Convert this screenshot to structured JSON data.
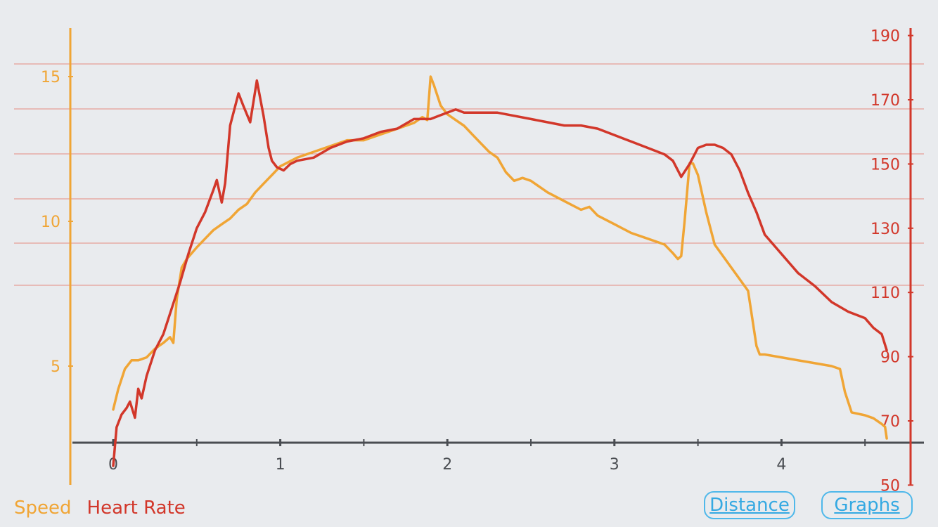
{
  "chart_data": {
    "type": "line",
    "title": "",
    "xlabel": "",
    "x_ticks": [
      "0",
      "1",
      "2",
      "3",
      "4"
    ],
    "xlim": [
      -0.6,
      4.8
    ],
    "y_left": {
      "label": "",
      "ticks": [
        "5",
        "10",
        "15"
      ],
      "ylim": [
        2.3,
        16.4
      ]
    },
    "y_right": {
      "label": "",
      "ticks": [
        "50",
        "70",
        "90",
        "110",
        "130",
        "150",
        "170",
        "190"
      ],
      "ylim": [
        50,
        190
      ]
    },
    "grid": true,
    "legend_position": "bottom-left",
    "series": [
      {
        "name": "Speed",
        "axis": "left",
        "color": "#f0a535",
        "x": [
          0,
          0.03,
          0.07,
          0.11,
          0.15,
          0.2,
          0.25,
          0.3,
          0.34,
          0.36,
          0.38,
          0.41,
          0.44,
          0.5,
          0.55,
          0.6,
          0.65,
          0.7,
          0.75,
          0.8,
          0.85,
          0.9,
          0.95,
          1.0,
          1.1,
          1.2,
          1.3,
          1.4,
          1.5,
          1.6,
          1.7,
          1.8,
          1.85,
          1.88,
          1.9,
          1.92,
          1.96,
          2.0,
          2.05,
          2.1,
          2.15,
          2.2,
          2.25,
          2.3,
          2.33,
          2.35,
          2.4,
          2.45,
          2.5,
          2.55,
          2.6,
          2.7,
          2.8,
          2.85,
          2.9,
          3.0,
          3.1,
          3.2,
          3.3,
          3.35,
          3.38,
          3.4,
          3.42,
          3.45,
          3.47,
          3.5,
          3.55,
          3.6,
          3.65,
          3.7,
          3.75,
          3.8,
          3.85,
          3.87,
          3.9,
          4.0,
          4.1,
          4.2,
          4.3,
          4.35,
          4.38,
          4.42,
          4.5,
          4.55,
          4.6,
          4.62,
          4.63
        ],
        "values": [
          3.5,
          4.2,
          4.9,
          5.2,
          5.2,
          5.3,
          5.6,
          5.8,
          6.0,
          5.8,
          7.3,
          8.4,
          8.7,
          9.1,
          9.4,
          9.7,
          9.9,
          10.1,
          10.4,
          10.6,
          11.0,
          11.3,
          11.6,
          11.9,
          12.2,
          12.4,
          12.6,
          12.8,
          12.8,
          13.0,
          13.2,
          13.4,
          13.6,
          13.5,
          15.0,
          14.7,
          14.0,
          13.7,
          13.5,
          13.3,
          13.0,
          12.7,
          12.4,
          12.2,
          11.9,
          11.7,
          11.4,
          11.5,
          11.4,
          11.2,
          11.0,
          10.7,
          10.4,
          10.5,
          10.2,
          9.9,
          9.6,
          9.4,
          9.2,
          8.9,
          8.7,
          8.8,
          10.0,
          12.0,
          12.0,
          11.6,
          10.3,
          9.2,
          8.8,
          8.4,
          8.0,
          7.6,
          5.7,
          5.4,
          5.4,
          5.3,
          5.2,
          5.1,
          5.0,
          4.9,
          4.1,
          3.4,
          3.3,
          3.2,
          3.0,
          2.9,
          2.5
        ]
      },
      {
        "name": "Heart Rate",
        "axis": "right",
        "color": "#d2372a",
        "x": [
          0,
          0.02,
          0.05,
          0.08,
          0.1,
          0.13,
          0.15,
          0.17,
          0.2,
          0.25,
          0.3,
          0.35,
          0.4,
          0.45,
          0.5,
          0.55,
          0.6,
          0.62,
          0.65,
          0.67,
          0.7,
          0.75,
          0.78,
          0.82,
          0.86,
          0.9,
          0.93,
          0.95,
          0.98,
          1.02,
          1.06,
          1.1,
          1.2,
          1.3,
          1.4,
          1.5,
          1.6,
          1.7,
          1.8,
          1.85,
          1.9,
          1.95,
          2.0,
          2.05,
          2.1,
          2.2,
          2.3,
          2.4,
          2.5,
          2.6,
          2.7,
          2.8,
          2.9,
          3.0,
          3.1,
          3.2,
          3.3,
          3.35,
          3.4,
          3.45,
          3.5,
          3.55,
          3.6,
          3.65,
          3.7,
          3.75,
          3.8,
          3.85,
          3.9,
          4.0,
          4.1,
          4.2,
          4.3,
          4.4,
          4.5,
          4.55,
          4.6,
          4.63
        ],
        "values": [
          56,
          68,
          72,
          74,
          76,
          71,
          80,
          77,
          84,
          92,
          97,
          105,
          113,
          122,
          130,
          135,
          142,
          145,
          138,
          144,
          162,
          172,
          168,
          163,
          176,
          165,
          155,
          151,
          149,
          148,
          150,
          151,
          152,
          155,
          157,
          158,
          160,
          161,
          164,
          164,
          164,
          165,
          166,
          167,
          166,
          166,
          166,
          165,
          164,
          163,
          162,
          162,
          161,
          159,
          157,
          155,
          153,
          151,
          146,
          150,
          155,
          156,
          156,
          155,
          153,
          148,
          141,
          135,
          128,
          122,
          116,
          112,
          107,
          104,
          102,
          99,
          97,
          92
        ]
      }
    ]
  },
  "legend": {
    "speed_label": "Speed",
    "hr_label": "Heart Rate"
  },
  "buttons": {
    "distance_label": "Distance",
    "graphs_label": "Graphs"
  }
}
